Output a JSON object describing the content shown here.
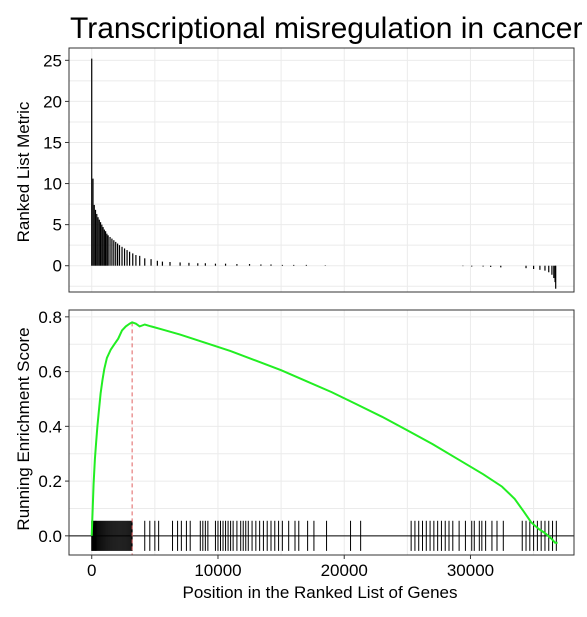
{
  "chart_data": {
    "type": "gsea_enrichment",
    "title": "Transcriptional misregulation in cancer",
    "xlabel": "Position in the Ranked List of Genes",
    "xlim": [
      -1800,
      38200
    ],
    "x_ticks": [
      0,
      10000,
      20000,
      30000
    ],
    "x_tick_labels": [
      "0",
      "10000",
      "20000",
      "30000"
    ],
    "grid": true,
    "colors": {
      "background": "#ffffff",
      "grid": "#ebebeb",
      "bars": "#000000",
      "curve": "#22ee22",
      "peak_line": "#e06060",
      "baseline": "#000000"
    },
    "peak_position": 3200,
    "top_panel": {
      "ylabel": "Ranked List Metric",
      "ylim": [
        -3.2,
        26.5
      ],
      "y_ticks": [
        0,
        5,
        10,
        15,
        20,
        25
      ],
      "y_tick_labels": [
        "0",
        "5",
        "10",
        "15",
        "20",
        "25"
      ],
      "bars": [
        [
          0,
          25.2
        ],
        [
          100,
          10.6
        ],
        [
          200,
          7.4
        ],
        [
          300,
          6.8
        ],
        [
          400,
          6.3
        ],
        [
          500,
          5.9
        ],
        [
          600,
          5.6
        ],
        [
          700,
          5.3
        ],
        [
          800,
          5.0
        ],
        [
          900,
          4.7
        ],
        [
          1000,
          4.4
        ],
        [
          1100,
          4.2
        ],
        [
          1200,
          3.9
        ],
        [
          1300,
          3.7
        ],
        [
          1450,
          3.5
        ],
        [
          1600,
          3.3
        ],
        [
          1750,
          3.1
        ],
        [
          1900,
          2.9
        ],
        [
          2050,
          2.7
        ],
        [
          2200,
          2.5
        ],
        [
          2400,
          2.3
        ],
        [
          2600,
          2.1
        ],
        [
          2800,
          1.9
        ],
        [
          3000,
          1.7
        ],
        [
          3250,
          1.5
        ],
        [
          3500,
          1.3
        ],
        [
          3800,
          1.2
        ],
        [
          4200,
          0.9
        ],
        [
          4700,
          0.8
        ],
        [
          5200,
          0.6
        ],
        [
          5600,
          0.5
        ],
        [
          6200,
          0.45
        ],
        [
          7000,
          0.4
        ],
        [
          7700,
          0.35
        ],
        [
          8400,
          0.3
        ],
        [
          9000,
          0.3
        ],
        [
          9800,
          0.25
        ],
        [
          10600,
          0.25
        ],
        [
          11500,
          0.2
        ],
        [
          12500,
          0.2
        ],
        [
          13400,
          0.15
        ],
        [
          14200,
          0.15
        ],
        [
          15100,
          0.1
        ],
        [
          16000,
          0.1
        ],
        [
          17000,
          0.1
        ],
        [
          18500,
          0.05
        ],
        [
          29400,
          -0.05
        ],
        [
          30100,
          -0.1
        ],
        [
          31000,
          -0.1
        ],
        [
          31600,
          -0.15
        ],
        [
          32400,
          -0.2
        ],
        [
          34400,
          -0.3
        ],
        [
          35000,
          -0.4
        ],
        [
          35500,
          -0.5
        ],
        [
          35900,
          -0.6
        ],
        [
          36200,
          -0.8
        ],
        [
          36450,
          -1.1
        ],
        [
          36600,
          -1.5
        ],
        [
          36700,
          -2.0
        ],
        [
          36750,
          -2.8
        ]
      ]
    },
    "bottom_panel": {
      "ylabel": "Running Enrichment Score",
      "ylim": [
        -0.07,
        0.825
      ],
      "y_ticks": [
        0.0,
        0.2,
        0.4,
        0.6,
        0.8
      ],
      "y_tick_labels": [
        "0.0",
        "0.2",
        "0.4",
        "0.6",
        "0.8"
      ],
      "running_score": [
        [
          0,
          0.0
        ],
        [
          80,
          0.1
        ],
        [
          150,
          0.19
        ],
        [
          250,
          0.28
        ],
        [
          350,
          0.34
        ],
        [
          450,
          0.4
        ],
        [
          550,
          0.45
        ],
        [
          700,
          0.52
        ],
        [
          850,
          0.57
        ],
        [
          1000,
          0.61
        ],
        [
          1200,
          0.65
        ],
        [
          1500,
          0.68
        ],
        [
          1800,
          0.7
        ],
        [
          2100,
          0.72
        ],
        [
          2400,
          0.75
        ],
        [
          2700,
          0.765
        ],
        [
          3000,
          0.775
        ],
        [
          3200,
          0.78
        ],
        [
          3500,
          0.775
        ],
        [
          3800,
          0.765
        ],
        [
          4200,
          0.772
        ],
        [
          4700,
          0.765
        ],
        [
          5500,
          0.755
        ],
        [
          7000,
          0.735
        ],
        [
          9000,
          0.705
        ],
        [
          11000,
          0.675
        ],
        [
          13000,
          0.64
        ],
        [
          15000,
          0.605
        ],
        [
          17000,
          0.565
        ],
        [
          19000,
          0.525
        ],
        [
          21000,
          0.48
        ],
        [
          23000,
          0.435
        ],
        [
          25000,
          0.385
        ],
        [
          27000,
          0.335
        ],
        [
          29000,
          0.28
        ],
        [
          31000,
          0.225
        ],
        [
          32500,
          0.18
        ],
        [
          33500,
          0.135
        ],
        [
          34200,
          0.09
        ],
        [
          34800,
          0.05
        ],
        [
          35400,
          0.025
        ],
        [
          35900,
          0.01
        ],
        [
          36400,
          -0.01
        ],
        [
          36700,
          -0.025
        ],
        [
          36900,
          -0.025
        ]
      ],
      "hits": [
        0,
        60,
        120,
        180,
        240,
        300,
        360,
        420,
        500,
        580,
        660,
        740,
        820,
        900,
        980,
        1060,
        1140,
        1220,
        1300,
        1380,
        1460,
        1540,
        1620,
        1700,
        1780,
        1860,
        1940,
        2020,
        2100,
        2180,
        2260,
        2340,
        2420,
        2500,
        2580,
        2660,
        2740,
        2820,
        2900,
        2980,
        3060,
        3140,
        3200,
        4200,
        4600,
        5000,
        5300,
        6400,
        6800,
        7100,
        7500,
        7800,
        8600,
        8800,
        9000,
        9200,
        9800,
        10000,
        10200,
        10400,
        10600,
        10800,
        11000,
        11200,
        11500,
        11800,
        12000,
        12200,
        12400,
        12700,
        13000,
        13300,
        13600,
        13900,
        14200,
        14500,
        14800,
        15100,
        15600,
        16100,
        16400,
        17100,
        17600,
        18600,
        20500,
        21300,
        25300,
        25600,
        25900,
        26200,
        26500,
        26800,
        27100,
        27400,
        27700,
        28000,
        28300,
        28600,
        29100,
        29600,
        30100,
        30300,
        30700,
        30900,
        31200,
        31700,
        32100,
        32600,
        34100,
        34400,
        34700,
        35000,
        35300,
        35600,
        35900,
        36200,
        36500,
        36800
      ]
    }
  }
}
